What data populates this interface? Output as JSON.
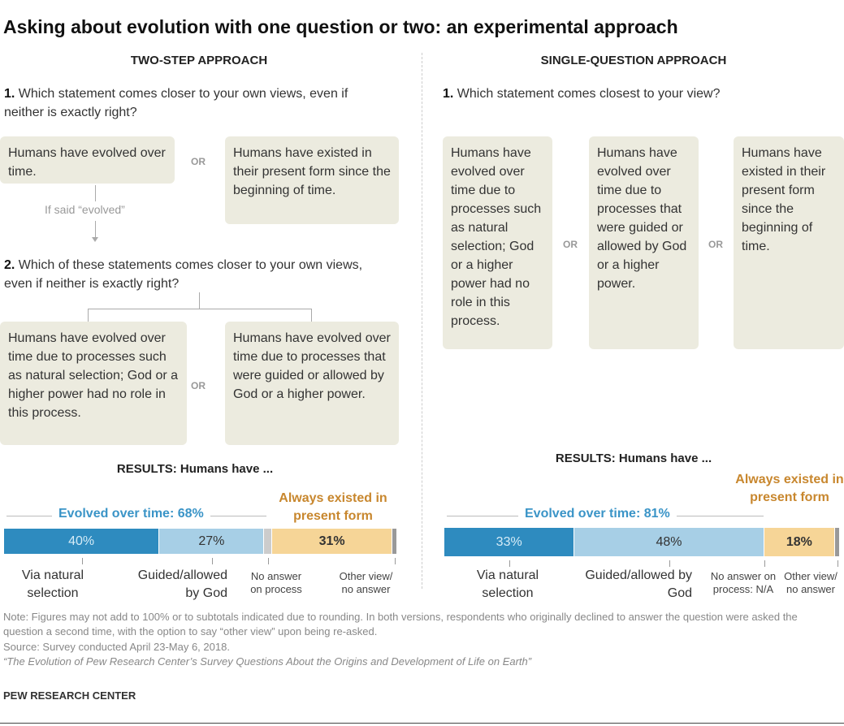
{
  "title": "Asking about evolution with one question or two: an experimental approach",
  "left": {
    "header": "TWO-STEP APPROACH",
    "q1_num": "1.",
    "q1": "Which statement comes closer to your own views, even if neither is exactly right?",
    "q1_opt_a": "Humans have evolved over time.",
    "q1_opt_b": "Humans have existed in their present form since the beginning of time.",
    "or": "OR",
    "if_said": "If said “evolved”",
    "q2_num": "2.",
    "q2": "Which of these statements comes closer to your own views, even if neither is exactly right?",
    "q2_opt_a": "Humans have evolved over time due to processes such as natural selection; God or a higher power had no role in this process.",
    "q2_opt_b": "Humans have evolved over time due to processes that were guided or allowed by God or a higher power.",
    "results": "RESULTS: Humans have ...",
    "evolved_label": "Evolved over time: 68%",
    "always_label": "Always existed in present form",
    "labels": [
      "Via natural selection",
      "Guided/allowed by God",
      "No answer on process",
      "Other view/ no answer"
    ]
  },
  "right": {
    "header": "SINGLE-QUESTION APPROACH",
    "q1_num": "1.",
    "q1": "Which statement comes closest to your view?",
    "opt_a": "Humans have evolved over time due to processes such as natural selection; God or a higher power had no role in this process.",
    "opt_b": "Humans have evolved over time due to processes that were guided or allowed by God or a higher power.",
    "opt_c": "Humans have existed in their present form since the beginning of time.",
    "or": "OR",
    "results": "RESULTS: Humans have ...",
    "evolved_label": "Evolved over time: 81%",
    "always_label": "Always existed in present form",
    "labels": [
      "Via natural selection",
      "Guided/allowed by God",
      "No answer on process: N/A",
      "Other view/ no answer"
    ]
  },
  "chart_data": [
    {
      "type": "bar",
      "stacked": true,
      "categories": [
        "Via natural selection",
        "Guided/allowed by God",
        "No answer on process",
        "Always existed in present form",
        "Other view/ no answer"
      ],
      "values": [
        40,
        27,
        2,
        31,
        1
      ],
      "data_labels": [
        "40%",
        "27%",
        "",
        "31%",
        ""
      ]
    },
    {
      "type": "bar",
      "stacked": true,
      "categories": [
        "Via natural selection",
        "Guided/allowed by God",
        "No answer on process: N/A",
        "Always existed in present form",
        "Other view/ no answer"
      ],
      "values": [
        33,
        48,
        0,
        18,
        1
      ],
      "data_labels": [
        "33%",
        "48%",
        "",
        "18%",
        ""
      ]
    }
  ],
  "colors": {
    "natural": "#2e8bbf",
    "guided": "#a7cfe6",
    "noanswer": "#cccccc",
    "always": "#f6d597",
    "other": "#999999",
    "evolved_text": "#3a94c7",
    "always_text": "#c8872e"
  },
  "notes": {
    "note": "Note: Figures may not add to 100% or to subtotals indicated due to rounding. In both versions, respondents who originally declined to answer the question were asked the question a second time, with the option to say “other view” upon being re-asked.",
    "source": "Source: Survey conducted April 23-May 6, 2018.",
    "report": "“The Evolution of Pew Research Center’s Survey Questions About the Origins and Development of Life on Earth”",
    "org": "PEW RESEARCH CENTER"
  }
}
